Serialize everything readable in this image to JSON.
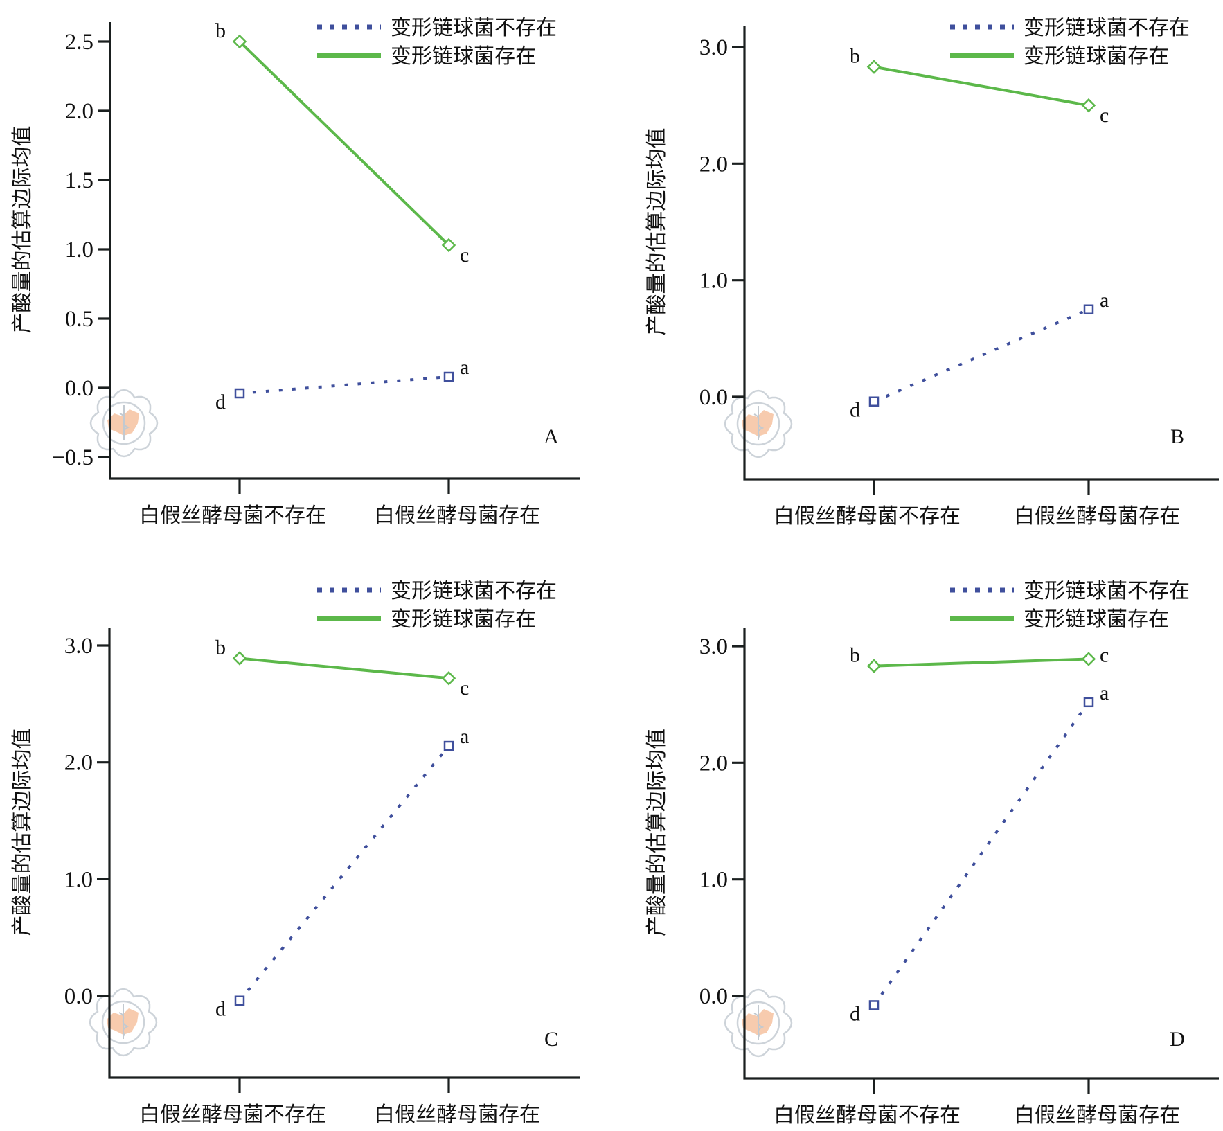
{
  "figure": {
    "panel_count": 4
  },
  "colors": {
    "absent_series": "#3f4f9c",
    "present_series": "#5cb84a",
    "axis": "#1a1f1f",
    "watermark_map": "#f6c3a0",
    "watermark_ring": "#c5ccd3"
  },
  "chart_data": [
    {
      "type": "line",
      "panel": "A",
      "title": "",
      "xlabel": "",
      "ylabel": "产酸量的估算边际均值",
      "categories": [
        "白假丝酵母菌不存在",
        "白假丝酵母菌存在"
      ],
      "ylim": [
        -0.6,
        2.65
      ],
      "yticks": [
        -0.5,
        0.0,
        0.5,
        1.0,
        1.5,
        2.0,
        2.5
      ],
      "ytick_labels": [
        "−0.5",
        "0.0",
        "0.5",
        "1.0",
        "1.5",
        "2.0",
        "2.5"
      ],
      "grid": false,
      "legend_position": "top-right",
      "series": [
        {
          "name": "变形链球菌不存在",
          "style": "dotted",
          "values": [
            -0.04,
            0.08
          ],
          "point_labels": [
            "d",
            "a"
          ]
        },
        {
          "name": "变形链球菌存在",
          "style": "solid",
          "values": [
            2.5,
            1.03
          ],
          "point_labels": [
            "b",
            "c"
          ]
        }
      ]
    },
    {
      "type": "line",
      "panel": "B",
      "title": "",
      "xlabel": "",
      "ylabel": "产酸量的估算边际均值",
      "categories": [
        "白假丝酵母菌不存在",
        "白假丝酵母菌存在"
      ],
      "ylim": [
        -0.7,
        3.2
      ],
      "yticks": [
        0.0,
        1.0,
        2.0,
        3.0
      ],
      "ytick_labels": [
        "0.0",
        "1.0",
        "2.0",
        "3.0"
      ],
      "grid": false,
      "legend_position": "top-right",
      "series": [
        {
          "name": "变形链球菌不存在",
          "style": "dotted",
          "values": [
            -0.04,
            0.75
          ],
          "point_labels": [
            "d",
            "a"
          ]
        },
        {
          "name": "变形链球菌存在",
          "style": "solid",
          "values": [
            2.83,
            2.5
          ],
          "point_labels": [
            "b",
            "c"
          ]
        }
      ]
    },
    {
      "type": "line",
      "panel": "C",
      "title": "",
      "xlabel": "",
      "ylabel": "产酸量的估算边际均值",
      "categories": [
        "白假丝酵母菌不存在",
        "白假丝酵母菌存在"
      ],
      "ylim": [
        -0.7,
        3.2
      ],
      "yticks": [
        0.0,
        1.0,
        2.0,
        3.0
      ],
      "ytick_labels": [
        "0.0",
        "1.0",
        "2.0",
        "3.0"
      ],
      "grid": false,
      "legend_position": "top-right",
      "series": [
        {
          "name": "变形链球菌不存在",
          "style": "dotted",
          "values": [
            -0.04,
            2.14
          ],
          "point_labels": [
            "d",
            "a"
          ]
        },
        {
          "name": "变形链球菌存在",
          "style": "solid",
          "values": [
            2.89,
            2.72
          ],
          "point_labels": [
            "b",
            "c"
          ]
        }
      ]
    },
    {
      "type": "line",
      "panel": "D",
      "title": "",
      "xlabel": "",
      "ylabel": "产酸量的估算边际均值",
      "categories": [
        "白假丝酵母菌不存在",
        "白假丝酵母菌存在"
      ],
      "ylim": [
        -0.7,
        3.2
      ],
      "yticks": [
        0.0,
        1.0,
        2.0,
        3.0
      ],
      "ytick_labels": [
        "0.0",
        "1.0",
        "2.0",
        "3.0"
      ],
      "grid": false,
      "legend_position": "top-right",
      "series": [
        {
          "name": "变形链球菌不存在",
          "style": "dotted",
          "values": [
            -0.08,
            2.52
          ],
          "point_labels": [
            "d",
            "a"
          ]
        },
        {
          "name": "变形链球菌存在",
          "style": "solid",
          "values": [
            2.83,
            2.89
          ],
          "point_labels": [
            "b",
            "c"
          ]
        }
      ]
    }
  ]
}
